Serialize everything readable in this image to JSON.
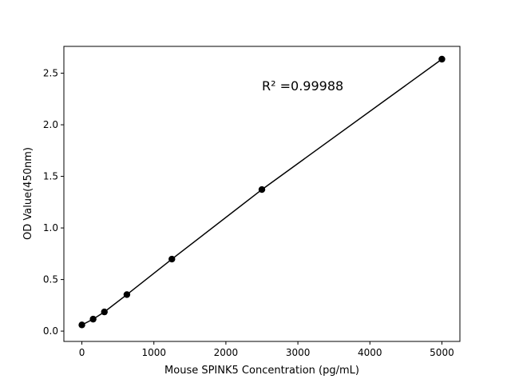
{
  "chart_data": {
    "type": "line",
    "title": "",
    "xlabel": "Mouse SPINK5 Concentration (pg/mL)",
    "ylabel": "OD Value(450nm)",
    "xlim": [
      -250,
      5250
    ],
    "ylim": [
      -0.1,
      2.76
    ],
    "xticks": [
      0,
      1000,
      2000,
      3000,
      4000,
      5000
    ],
    "xtick_labels": [
      "0",
      "1000",
      "2000",
      "3000",
      "4000",
      "5000"
    ],
    "yticks": [
      0.0,
      0.5,
      1.0,
      1.5,
      2.0,
      2.5
    ],
    "ytick_labels": [
      "0.0",
      "0.5",
      "1.0",
      "1.5",
      "2.0",
      "2.5"
    ],
    "grid": false,
    "series": [
      {
        "x": [
          0,
          156.25,
          312.5,
          625,
          1250,
          2500,
          5000
        ],
        "y": [
          0.06,
          0.116,
          0.186,
          0.354,
          0.698,
          1.372,
          2.636
        ],
        "color": "#000000",
        "marker": "circle"
      }
    ],
    "annotations": [
      {
        "text": "R² =0.99988",
        "x": 2500,
        "y": 2.38
      }
    ]
  }
}
